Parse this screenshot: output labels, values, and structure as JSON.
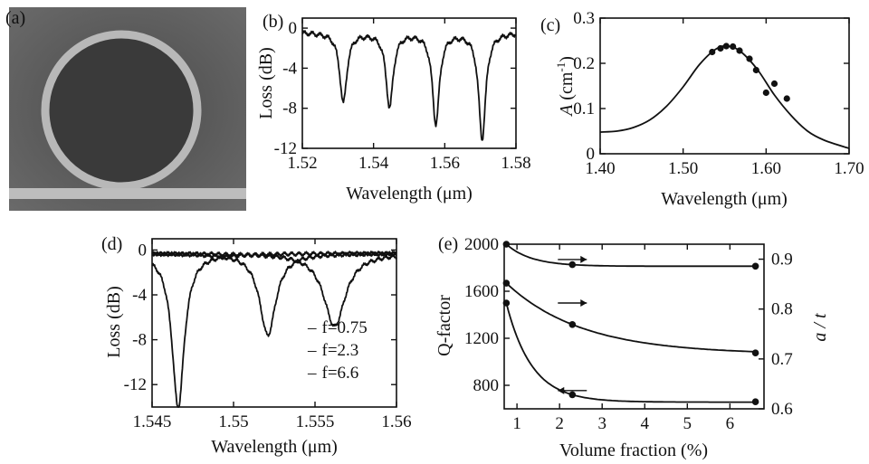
{
  "chart_data": [
    {
      "panel": "(a)",
      "type": "image",
      "description_visible": ""
    },
    {
      "panel": "(b)",
      "type": "line",
      "xlabel": "Wavelength (μm)",
      "ylabel": "Loss (dB)",
      "xlim": [
        1.52,
        1.58
      ],
      "ylim": [
        -12,
        1
      ],
      "xticks": [
        "1.52",
        "1.54",
        "1.56",
        "1.58"
      ],
      "yticks": [
        "0",
        "-4",
        "-8",
        "-12"
      ],
      "dips": [
        {
          "x": 1.5315,
          "depth": -7.0
        },
        {
          "x": 1.5445,
          "depth": -7.4
        },
        {
          "x": 1.5575,
          "depth": -9.0
        },
        {
          "x": 1.5705,
          "depth": -10.6
        }
      ]
    },
    {
      "panel": "(c)",
      "type": "line",
      "xlabel": "Wavelength (μm)",
      "ylabel": "A (cm⁻¹)",
      "ylabel_parts": {
        "symbol": "A",
        "unit_open": " (cm",
        "sup": "-1",
        "unit_close": ")"
      },
      "xlim": [
        1.4,
        1.7
      ],
      "ylim": [
        0,
        0.3
      ],
      "xticks": [
        "1.40",
        "1.50",
        "1.60",
        "1.70"
      ],
      "yticks": [
        "0",
        "0.1",
        "0.2",
        "0.3"
      ],
      "curve": {
        "x": [
          1.4,
          1.42,
          1.44,
          1.46,
          1.48,
          1.5,
          1.52,
          1.54,
          1.555,
          1.57,
          1.59,
          1.61,
          1.63,
          1.65,
          1.67,
          1.7
        ],
        "y": [
          0.048,
          0.05,
          0.058,
          0.075,
          0.105,
          0.148,
          0.198,
          0.232,
          0.238,
          0.225,
          0.185,
          0.13,
          0.085,
          0.05,
          0.03,
          0.012
        ]
      },
      "points": {
        "x": [
          1.535,
          1.545,
          1.552,
          1.56,
          1.568,
          1.58,
          1.588,
          1.6,
          1.61,
          1.625
        ],
        "y": [
          0.225,
          0.233,
          0.238,
          0.237,
          0.228,
          0.21,
          0.185,
          0.135,
          0.155,
          0.122
        ]
      }
    },
    {
      "panel": "(d)",
      "type": "line",
      "xlabel": "Wavelength (μm)",
      "ylabel": "Loss (dB)",
      "xlim": [
        1.545,
        1.56
      ],
      "ylim": [
        -14,
        1
      ],
      "xticks": [
        "1.545",
        "1.55",
        "1.555",
        "1.56"
      ],
      "yticks": [
        "0",
        "-4",
        "-8",
        "-12"
      ],
      "series": [
        {
          "name": "f=0.75",
          "dip_x": 1.5466,
          "depth": -13.8,
          "width": 0.00045
        },
        {
          "name": "f=2.3",
          "dip_x": 1.5521,
          "depth": -7.3,
          "width": 0.0006
        },
        {
          "name": "f=6.6",
          "dip_x": 1.5562,
          "depth": -6.5,
          "width": 0.0008
        }
      ],
      "legend_prefix": "–"
    },
    {
      "panel": "(e)",
      "type": "line",
      "xlabel": "Volume fraction (%)",
      "ylabel": "Q-factor",
      "y2label": "a / t",
      "xlim": [
        0.7,
        6.8
      ],
      "ylim": [
        600,
        2000
      ],
      "y2lim": [
        0.6,
        0.93
      ],
      "xticks": [
        "1",
        "2",
        "3",
        "4",
        "5",
        "6"
      ],
      "yticks": [
        "800",
        "1200",
        "1600",
        "2000"
      ],
      "y2ticks": [
        "0.6",
        "0.7",
        "0.8",
        "0.9"
      ],
      "series": [
        {
          "name": "",
          "axis": "left",
          "x": [
            0.75,
            2.3,
            6.6
          ],
          "y": [
            1500,
            720,
            660
          ]
        },
        {
          "name": "",
          "axis": "right",
          "x": [
            0.75,
            2.3,
            6.6
          ],
          "y": [
            0.852,
            0.769,
            0.712
          ]
        },
        {
          "name": "",
          "axis": "right",
          "x": [
            0.75,
            2.3,
            6.6
          ],
          "y": [
            0.93,
            0.889,
            0.886
          ]
        }
      ],
      "arrows": [
        {
          "dir": "left",
          "x": 2.3,
          "y": 755
        },
        {
          "dir": "right",
          "x": 2.3,
          "y": 1500
        },
        {
          "dir": "right",
          "x": 2.3,
          "y": 1870
        }
      ]
    }
  ]
}
